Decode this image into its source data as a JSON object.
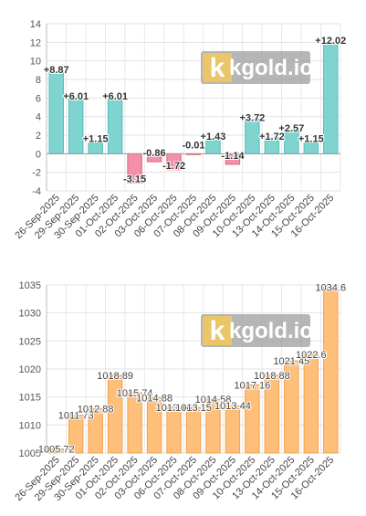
{
  "watermark": {
    "text": "kgold.io",
    "letter": "k"
  },
  "chart_data": [
    {
      "type": "bar",
      "categories": [
        "26-Sep-2025",
        "29-Sep-2025",
        "30-Sep-2025",
        "01-Oct-2025",
        "02-Oct-2025",
        "03-Oct-2025",
        "06-Oct-2025",
        "07-Oct-2025",
        "08-Oct-2025",
        "09-Oct-2025",
        "10-Oct-2025",
        "13-Oct-2025",
        "14-Oct-2025",
        "15-Oct-2025",
        "16-Oct-2025"
      ],
      "values": [
        8.87,
        6.01,
        1.15,
        6.01,
        -3.15,
        -0.86,
        -1.72,
        -0.01,
        1.43,
        -1.14,
        3.72,
        1.72,
        2.57,
        1.15,
        12.02
      ],
      "labels": [
        "+8.87",
        "+6.01",
        "+1.15",
        "+6.01",
        "-3.15",
        "-0.86",
        "-1.72",
        "-0.01",
        "+1.43",
        "-1.14",
        "+3.72",
        "+1.72",
        "+2.57",
        "+1.15",
        "+12.02"
      ],
      "yticks": [
        "-4",
        "-2",
        "0",
        "2",
        "4",
        "6",
        "8",
        "10",
        "12",
        "14"
      ],
      "ylim": [
        -4,
        14
      ],
      "grid": true,
      "colors": {
        "positive_fill": "#7fd4d0",
        "positive_stroke": "#4fbfba",
        "negative_fill": "#f48fa8",
        "negative_stroke": "#e9607f"
      }
    },
    {
      "type": "bar",
      "categories": [
        "26-Sep-2025",
        "29-Sep-2025",
        "30-Sep-2025",
        "01-Oct-2025",
        "02-Oct-2025",
        "03-Oct-2025",
        "06-Oct-2025",
        "07-Oct-2025",
        "08-Oct-2025",
        "09-Oct-2025",
        "10-Oct-2025",
        "13-Oct-2025",
        "14-Oct-2025",
        "15-Oct-2025",
        "16-Oct-2025"
      ],
      "values": [
        1005.72,
        1011.73,
        1012.88,
        1018.89,
        1015.74,
        1014.88,
        1013.16,
        1013.15,
        1014.58,
        1013.44,
        1017.16,
        1018.88,
        1021.45,
        1022.6,
        1034.6
      ],
      "labels": [
        "1005.72",
        "1011.73",
        "1012.88",
        "1018.89",
        "1015.74",
        "1014.88",
        "1013.16",
        "1013.15",
        "1014.58",
        "1013.44",
        "1017.16",
        "1018.88",
        "1021.45",
        "1022.6",
        "1034.6"
      ],
      "yticks": [
        "1005",
        "1010",
        "1015",
        "1020",
        "1025",
        "1030",
        "1035"
      ],
      "ylim": [
        1005,
        1035
      ],
      "grid": true,
      "colors": {
        "fill": "#fdbf7a",
        "stroke": "#f7a04a"
      }
    }
  ]
}
